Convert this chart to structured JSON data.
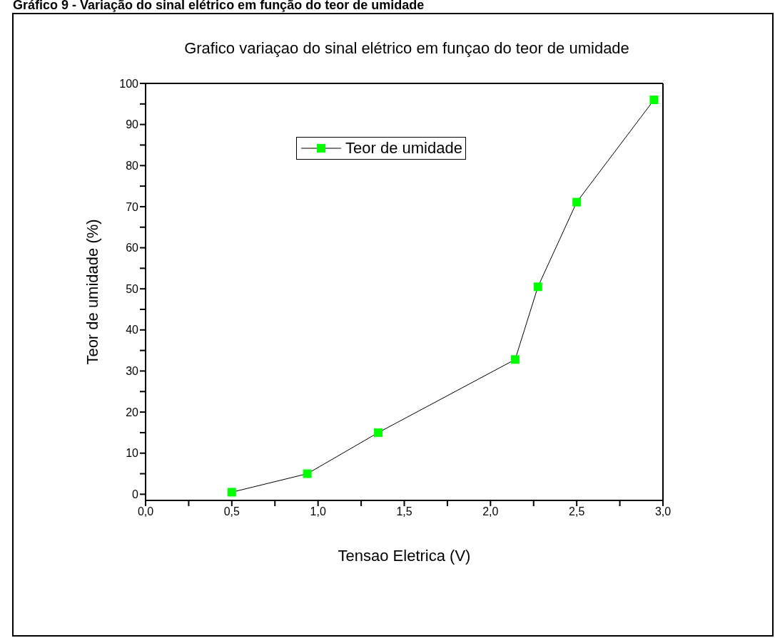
{
  "chart_data": {
    "type": "line",
    "title": "Gráfico 9 - Variação do sinal elétrico em função do teor de umidade",
    "subtitle": "Grafico variaçao do sinal elétrico em funçao do teor de umidade",
    "xlabel": "Tensao Eletrica (V)",
    "ylabel": "Teor de umidade (%)",
    "x": [
      0.5,
      0.938,
      1.349,
      2.143,
      2.275,
      2.5,
      2.948
    ],
    "series": [
      {
        "name": "Teor de umidade",
        "color": "#00ff00",
        "values": [
          0.5,
          5,
          15,
          32.8,
          50.5,
          71.1,
          96
        ]
      }
    ],
    "xlim": [
      0,
      3
    ],
    "ylim": [
      -1.5,
      100
    ],
    "xticks": [
      {
        "value": 0,
        "label": "0,0"
      },
      {
        "value": 0.25,
        "label": null
      },
      {
        "value": 0.5,
        "label": "0,5"
      },
      {
        "value": 0.75,
        "label": null
      },
      {
        "value": 1,
        "label": "1,0"
      },
      {
        "value": 1.25,
        "label": null
      },
      {
        "value": 1.5,
        "label": "1,5"
      },
      {
        "value": 1.75,
        "label": null
      },
      {
        "value": 2,
        "label": "2,0"
      },
      {
        "value": 2.25,
        "label": null
      },
      {
        "value": 2.5,
        "label": "2,5"
      },
      {
        "value": 2.75,
        "label": null
      },
      {
        "value": 3,
        "label": "3,0"
      }
    ],
    "yticks": [
      0,
      {
        "value": 5,
        "label": null
      },
      10,
      {
        "value": 15,
        "label": null
      },
      20,
      {
        "value": 25,
        "label": null
      },
      30,
      {
        "value": 35,
        "label": null
      },
      40,
      {
        "value": 45,
        "label": null
      },
      50,
      {
        "value": 55,
        "label": null
      },
      60,
      {
        "value": 65,
        "label": null
      },
      70,
      {
        "value": 75,
        "label": null
      },
      80,
      {
        "value": 85,
        "label": null
      },
      90,
      {
        "value": 95,
        "label": null
      },
      100
    ],
    "marker": "square",
    "line_style": "solid",
    "legend": "top",
    "grid": false
  }
}
